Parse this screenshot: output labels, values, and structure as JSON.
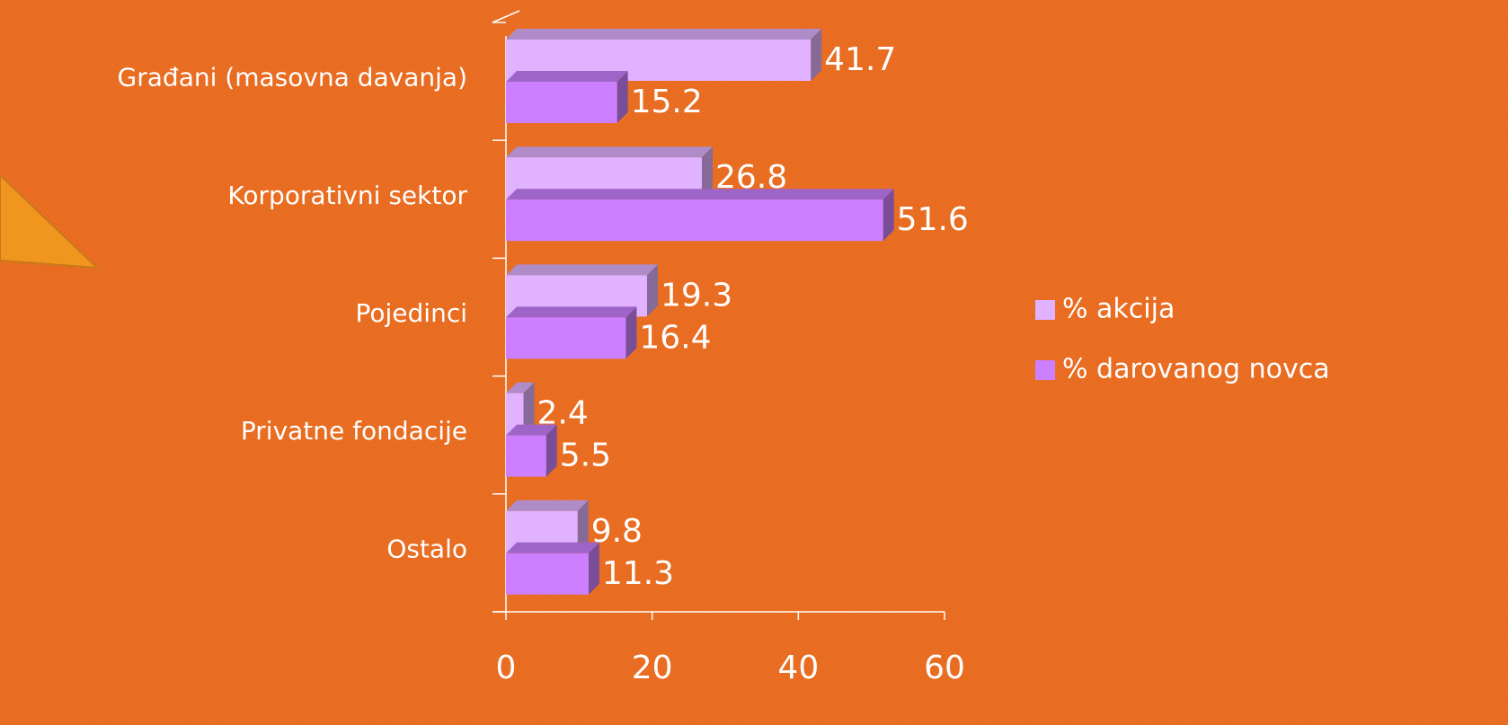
{
  "chart_data": {
    "type": "bar3d_horizontal",
    "categories": [
      "Građani (masovna davanja)",
      "Korporativni sektor",
      "Pojedinci",
      "Privatne fondacije",
      "Ostalo"
    ],
    "series": [
      {
        "name": "% akcija",
        "color": "#E0B2FF",
        "values": [
          41.7,
          26.8,
          19.3,
          2.4,
          9.8
        ]
      },
      {
        "name": "% darovanog novca",
        "color": "#CC80FF",
        "values": [
          15.2,
          51.6,
          16.4,
          5.5,
          11.3
        ]
      }
    ],
    "xlim": [
      0,
      60
    ],
    "xticks": [
      0,
      20,
      40,
      60
    ],
    "legend": "right"
  }
}
